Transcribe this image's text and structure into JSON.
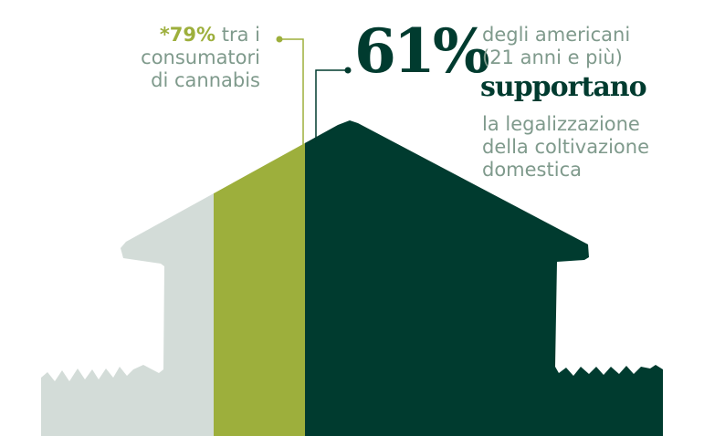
{
  "colors": {
    "others": "#d3dcd8",
    "consumers": "#9daf3c",
    "americans": "#003b2f",
    "text": "#7f9a8c"
  },
  "values": {
    "americans_support_pct": 61,
    "consumers_support_pct": 79
  },
  "left_note": {
    "pct": "*79%",
    "line1_rest": " tra i",
    "line2": "consumatori",
    "line3": "di cannabis"
  },
  "right_note": {
    "pct": "61%",
    "line1": "degli americani",
    "line2": "(21 anni e più)",
    "verb": "supportano",
    "line3": "la legalizzazione",
    "line4": "della coltivazione",
    "line5": "domestica"
  }
}
